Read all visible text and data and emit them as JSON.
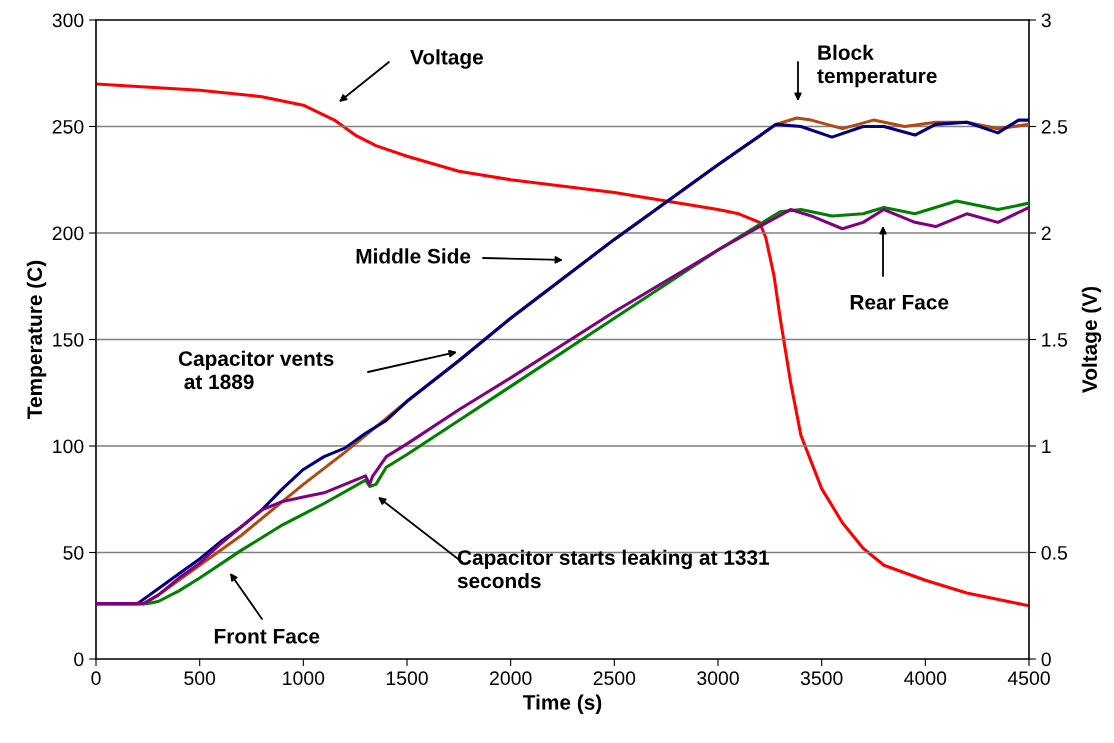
{
  "chart_data": {
    "type": "line",
    "xlabel": "Time (s)",
    "ylabel": "Temperature (C)",
    "y2label": "Voltage (V)",
    "xlim": [
      0,
      4500
    ],
    "xticks": [
      0,
      500,
      1000,
      1500,
      2000,
      2500,
      3000,
      3500,
      4000,
      4500
    ],
    "ylim": [
      0,
      300
    ],
    "yticks": [
      0,
      50,
      100,
      150,
      200,
      250,
      300
    ],
    "y2lim": [
      0,
      3
    ],
    "y2ticks": [
      0,
      0.5,
      1,
      1.5,
      2,
      2.5,
      3
    ],
    "grid": "y",
    "legend": false,
    "marker": "none",
    "line_style": "solid",
    "series": [
      {
        "color": "#b04a10",
        "x": [
          0,
          230,
          300,
          500,
          700,
          900,
          1000,
          1200,
          1300,
          1400,
          1500,
          1750,
          2000,
          2500,
          3000,
          3280,
          3380,
          3450,
          3600,
          3750,
          3900,
          4050,
          4200,
          4350,
          4500
        ],
        "values": [
          26,
          26,
          30,
          44,
          58,
          74,
          82,
          97,
          105,
          113,
          121,
          140,
          160,
          197,
          232,
          251,
          254,
          253,
          249,
          253,
          250,
          252,
          252,
          249,
          251
        ]
      },
      {
        "color": "#000080",
        "x": [
          0,
          200,
          300,
          400,
          500,
          600,
          700,
          800,
          900,
          1000,
          1100,
          1200,
          1300,
          1400,
          1500,
          1750,
          2000,
          2500,
          3000,
          3280,
          3400,
          3550,
          3700,
          3800,
          3950,
          4050,
          4200,
          4350,
          4450,
          4500
        ],
        "values": [
          26,
          26,
          33,
          40,
          47,
          55,
          62,
          70,
          80,
          89,
          95,
          99,
          106,
          112,
          121,
          140,
          160,
          197,
          232,
          251,
          250,
          245,
          250,
          250,
          246,
          251,
          252,
          247,
          253,
          253
        ]
      },
      {
        "color": "#008000",
        "x": [
          0,
          250,
          300,
          400,
          500,
          700,
          900,
          1100,
          1300,
          1320,
          1350,
          1400,
          1500,
          1750,
          2000,
          2500,
          3000,
          3200,
          3300,
          3400,
          3550,
          3700,
          3800,
          3950,
          4150,
          4350,
          4500
        ],
        "values": [
          26,
          26,
          27,
          32,
          38,
          51,
          63,
          73,
          84,
          81,
          82,
          90,
          96,
          112,
          128,
          160,
          192,
          204,
          210,
          211,
          208,
          209,
          212,
          209,
          215,
          211,
          214
        ]
      },
      {
        "color": "#800080",
        "x": [
          0,
          230,
          300,
          400,
          500,
          600,
          700,
          800,
          900,
          1000,
          1100,
          1200,
          1300,
          1320,
          1335,
          1350,
          1400,
          1500,
          1750,
          2000,
          2500,
          3000,
          3200,
          3350,
          3450,
          3600,
          3700,
          3800,
          3950,
          4050,
          4200,
          4350,
          4500
        ],
        "values": [
          26,
          26,
          30,
          38,
          45,
          54,
          62,
          70,
          74,
          76,
          78,
          82,
          86,
          82,
          86,
          88,
          95,
          101,
          117,
          132,
          163,
          192,
          203,
          211,
          208,
          202,
          205,
          211,
          205,
          203,
          209,
          205,
          212
        ]
      },
      {
        "color": "#ff0000",
        "axis": "y2",
        "x": [
          0,
          500,
          800,
          1000,
          1150,
          1250,
          1350,
          1500,
          1750,
          2000,
          2500,
          3000,
          3100,
          3200,
          3230,
          3270,
          3300,
          3350,
          3400,
          3500,
          3600,
          3700,
          3800,
          4000,
          4200,
          4400,
          4500
        ],
        "values": [
          2.7,
          2.67,
          2.64,
          2.6,
          2.53,
          2.46,
          2.41,
          2.36,
          2.29,
          2.25,
          2.19,
          2.11,
          2.09,
          2.05,
          1.98,
          1.8,
          1.6,
          1.3,
          1.05,
          0.8,
          0.64,
          0.52,
          0.44,
          0.37,
          0.31,
          0.27,
          0.25
        ]
      }
    ],
    "annotations": [
      "Voltage",
      "Block\ntemperature",
      "Middle Side",
      "Capacitor vents\n at 1889",
      "Rear Face",
      "Front Face",
      "Capacitor starts leaking at 1331\nseconds"
    ]
  }
}
